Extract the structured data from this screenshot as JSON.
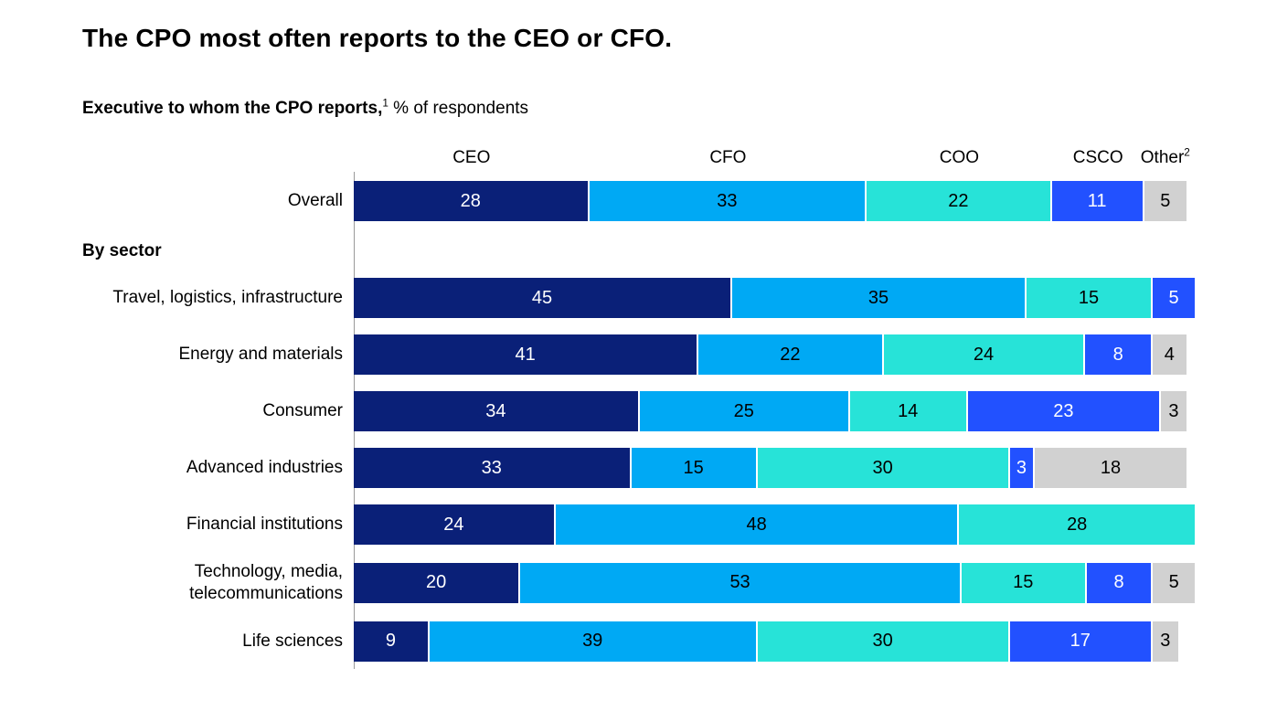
{
  "title": "The CPO most often reports to the CEO or CFO.",
  "subtitle": {
    "bold": "Executive to whom the CPO reports,",
    "bold_sup": "1",
    "rest": " % of respondents"
  },
  "section_label": "By sector",
  "chart_data": {
    "type": "bar",
    "subtype": "horizontal-stacked",
    "unit": "% of respondents",
    "xlim": [
      0,
      100
    ],
    "axis_line_color": "#9a9a9a",
    "series": [
      {
        "name": "CEO",
        "sup": "",
        "color": "#0A2078",
        "text_color": "#ffffff"
      },
      {
        "name": "CFO",
        "sup": "",
        "color": "#00A9F4",
        "text_color": "#000000"
      },
      {
        "name": "COO",
        "sup": "",
        "color": "#27E3D8",
        "text_color": "#000000"
      },
      {
        "name": "CSCO",
        "sup": "",
        "color": "#2251FF",
        "text_color": "#ffffff"
      },
      {
        "name": "Other",
        "sup": "2",
        "color": "#D1D1D1",
        "text_color": "#000000"
      }
    ],
    "overall_row": {
      "label": "Overall",
      "values": [
        28,
        33,
        22,
        11,
        5
      ]
    },
    "sector_rows": [
      {
        "label": "Travel, logistics, infrastructure",
        "values": [
          45,
          35,
          15,
          5,
          0
        ]
      },
      {
        "label": "Energy and materials",
        "values": [
          41,
          22,
          24,
          8,
          4
        ]
      },
      {
        "label": "Consumer",
        "values": [
          34,
          25,
          14,
          23,
          3
        ]
      },
      {
        "label": "Advanced industries",
        "values": [
          33,
          15,
          30,
          3,
          18
        ]
      },
      {
        "label": "Financial institutions",
        "values": [
          24,
          48,
          28,
          0,
          0
        ]
      },
      {
        "label": "Technology, media, telecommunications",
        "values": [
          20,
          53,
          15,
          8,
          5
        ]
      },
      {
        "label": "Life sciences",
        "values": [
          9,
          39,
          30,
          17,
          3
        ]
      }
    ]
  }
}
